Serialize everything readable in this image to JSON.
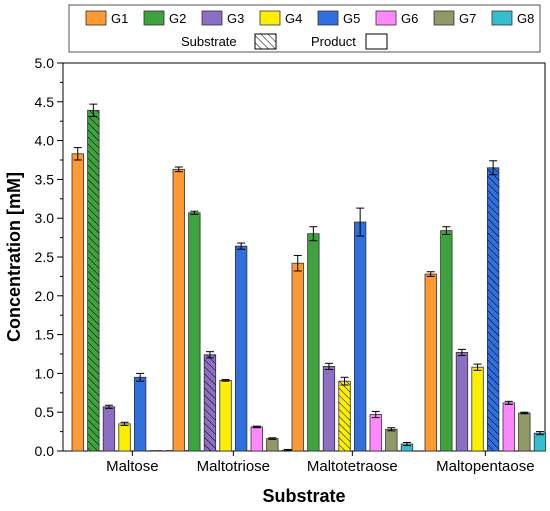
{
  "chart_data": {
    "type": "bar",
    "xlabel": "Substrate",
    "ylabel": "Concentration [mM]",
    "ylim": [
      0,
      5.0
    ],
    "yticks": [
      "0.0",
      "0.5",
      "1.0",
      "1.5",
      "2.0",
      "2.5",
      "3.0",
      "3.5",
      "4.0",
      "4.5",
      "5.0"
    ],
    "categories": [
      "Maltose",
      "Maltotriose",
      "Maltotetraose",
      "Maltopentaose"
    ],
    "legend_position": "top",
    "legend_extra": {
      "substrate_label": "Substrate",
      "product_label": "Product"
    },
    "series": [
      {
        "name": "G1",
        "color": "#ff9933",
        "values": [
          3.83,
          3.63,
          2.42,
          2.28
        ],
        "errors": [
          0.08,
          0.03,
          0.1,
          0.03
        ]
      },
      {
        "name": "G2",
        "color": "#3da33d",
        "values": [
          4.39,
          3.07,
          2.8,
          2.84
        ],
        "errors": [
          0.08,
          0.02,
          0.09,
          0.05
        ]
      },
      {
        "name": "G3",
        "color": "#8c6fc4",
        "values": [
          0.57,
          1.24,
          1.09,
          1.27
        ],
        "errors": [
          0.02,
          0.04,
          0.04,
          0.04
        ]
      },
      {
        "name": "G4",
        "color": "#ffee00",
        "values": [
          0.35,
          0.91,
          0.9,
          1.08
        ],
        "errors": [
          0.02,
          0.01,
          0.05,
          0.04
        ]
      },
      {
        "name": "G5",
        "color": "#2f6fde",
        "values": [
          0.95,
          2.64,
          2.95,
          3.65
        ],
        "errors": [
          0.05,
          0.04,
          0.18,
          0.09
        ]
      },
      {
        "name": "G6",
        "color": "#ff88ff",
        "values": [
          0,
          0.31,
          0.47,
          0.62
        ],
        "errors": [
          0,
          0.01,
          0.04,
          0.02
        ]
      },
      {
        "name": "G7",
        "color": "#8f9a66",
        "values": [
          0,
          0.16,
          0.28,
          0.49
        ],
        "errors": [
          0,
          0.01,
          0.02,
          0.01
        ]
      },
      {
        "name": "G8",
        "color": "#33bfcf",
        "values": [
          0,
          0.01,
          0.09,
          0.23
        ],
        "errors": [
          0,
          0.01,
          0.02,
          0.02
        ]
      }
    ],
    "substrate_series_index": [
      1,
      2,
      3,
      4
    ]
  }
}
